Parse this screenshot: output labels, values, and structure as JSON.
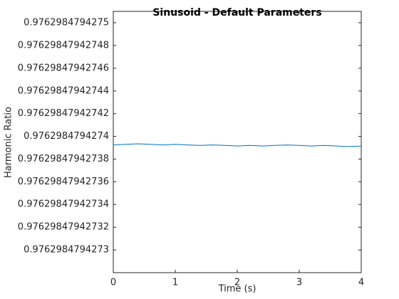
{
  "chart_data": {
    "type": "line",
    "title": "Sinusoid - Default Parameters",
    "x_label": "Time (s)",
    "y_label": "Harmonic Ratio",
    "x": [
      0,
      0.2,
      0.4,
      0.6,
      0.8,
      1,
      1.2,
      1.4,
      1.6,
      1.8,
      2,
      2.2,
      2.4,
      2.6,
      2.8,
      3,
      3.2,
      3.4,
      3.6,
      3.8,
      4
    ],
    "series": [
      {
        "name": "Harmonic Ratio",
        "color": "#0072bd",
        "values": [
          0.9762984794273925,
          0.976298479427393,
          0.9762984794273935,
          0.976298479427393,
          0.9762984794273925,
          0.976298479427393,
          0.9762984794273925,
          0.976298479427392,
          0.9762984794273925,
          0.976298479427392,
          0.9762984794273915,
          0.976298479427392,
          0.9762984794273915,
          0.976298479427392,
          0.9762984794273925,
          0.976298479427392,
          0.9762984794273915,
          0.976298479427392,
          0.9762984794273915,
          0.976298479427391,
          0.9762984794273915
        ]
      }
    ],
    "xlim": [
      0,
      4
    ],
    "xticks": [
      0,
      1,
      2,
      3,
      4
    ],
    "ylim": [
      0.97629847942728,
      0.97629847942751
    ],
    "yticks": [
      0.9762984794273,
      0.97629847942732,
      0.97629847942734,
      0.97629847942736,
      0.97629847942738,
      0.9762984794274,
      0.97629847942742,
      0.97629847942744,
      0.97629847942746,
      0.97629847942748,
      0.9762984794275
    ],
    "grid": false
  }
}
